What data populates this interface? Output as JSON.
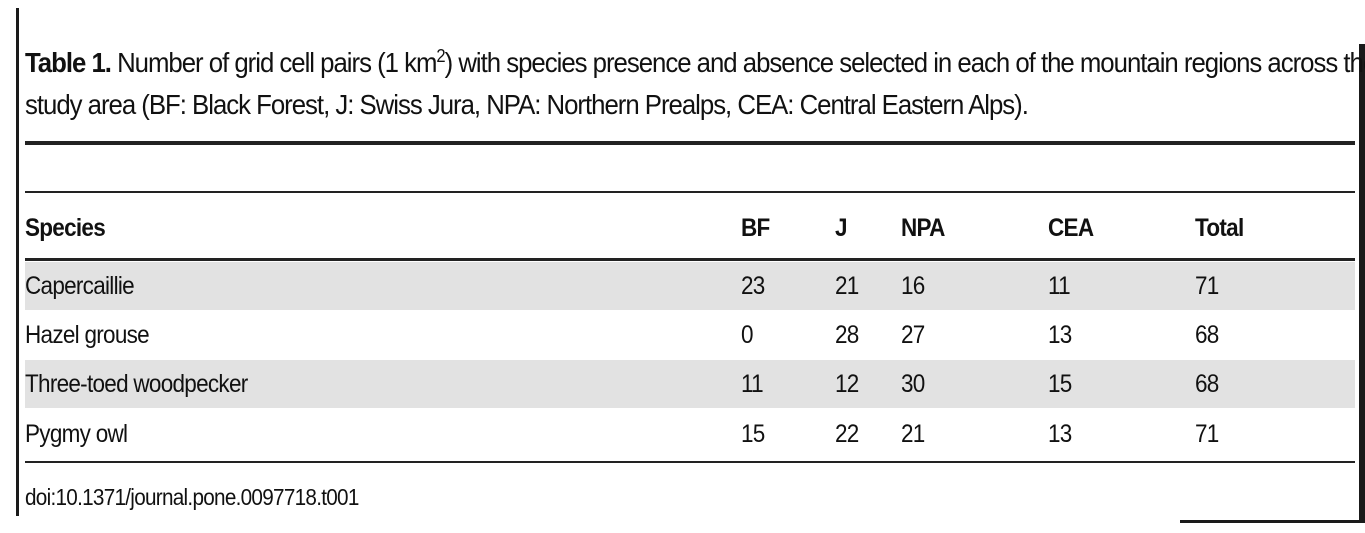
{
  "caption": {
    "label": "Table 1.",
    "text_before_sup": " Number of grid cell pairs (1 km",
    "sup": "2",
    "text_after_sup_line1": ") with species presence and absence selected in each of the mountain regions across the",
    "line2": "study area (BF: Black Forest, J: Swiss Jura, NPA: Northern Prealps, CEA: Central Eastern Alps)."
  },
  "table": {
    "headers": [
      "Species",
      "BF",
      "J",
      "NPA",
      "CEA",
      "Total"
    ],
    "rows": [
      [
        "Capercaillie",
        "23",
        "21",
        "16",
        "11",
        "71"
      ],
      [
        "Hazel grouse",
        "0",
        "28",
        "27",
        "13",
        "68"
      ],
      [
        "Three-toed woodpecker",
        "11",
        "12",
        "30",
        "15",
        "68"
      ],
      [
        "Pygmy owl",
        "15",
        "22",
        "21",
        "13",
        "71"
      ]
    ]
  },
  "doi": "doi:10.1371/journal.pone.0097718.t001"
}
